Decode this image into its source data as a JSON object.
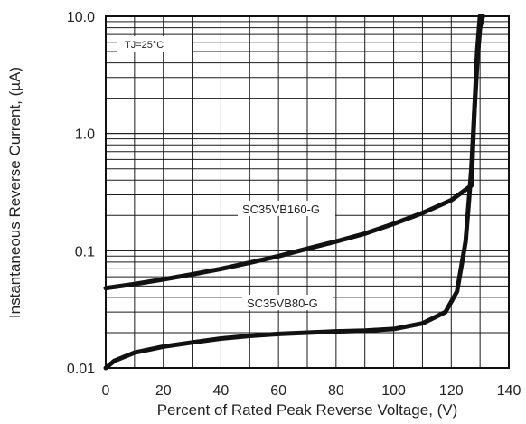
{
  "chart_data": {
    "type": "line",
    "title": "",
    "xlabel": "Percent of  Rated Peak Reverse Voltage, (V)",
    "ylabel": "Instantaneous Reverse Current, (µA)",
    "xlim": [
      0,
      140
    ],
    "ylim": [
      0.01,
      10
    ],
    "yscale": "log",
    "grid": true,
    "x_ticks": [
      0,
      20,
      40,
      60,
      80,
      100,
      120,
      140
    ],
    "x_tick_labels": [
      "0",
      "20",
      "40",
      "60",
      "80",
      "100",
      "120",
      "140"
    ],
    "y_ticks": [
      0.01,
      0.1,
      1,
      10
    ],
    "y_tick_labels": [
      "0.01",
      "0.1",
      "1.0",
      "10.0"
    ],
    "condition_label": "TJ=25°C",
    "series": [
      {
        "name": "SC35VB160-G",
        "x": [
          0,
          10,
          20,
          30,
          40,
          50,
          60,
          70,
          80,
          90,
          100,
          110,
          120,
          127,
          128,
          129,
          130,
          131
        ],
        "y": [
          0.048,
          0.052,
          0.057,
          0.063,
          0.07,
          0.079,
          0.09,
          0.104,
          0.12,
          0.14,
          0.17,
          0.21,
          0.27,
          0.36,
          1.5,
          5,
          10,
          10
        ]
      },
      {
        "name": "SC35VB80-G",
        "x": [
          0,
          3,
          10,
          20,
          30,
          40,
          50,
          60,
          70,
          80,
          90,
          100,
          110,
          118,
          122,
          125,
          127,
          128,
          129,
          130,
          131
        ],
        "y": [
          0.01,
          0.0115,
          0.0135,
          0.0152,
          0.0165,
          0.0178,
          0.0188,
          0.0195,
          0.02,
          0.0205,
          0.0208,
          0.0215,
          0.024,
          0.03,
          0.045,
          0.12,
          0.5,
          1.5,
          4,
          8,
          10
        ]
      }
    ]
  }
}
